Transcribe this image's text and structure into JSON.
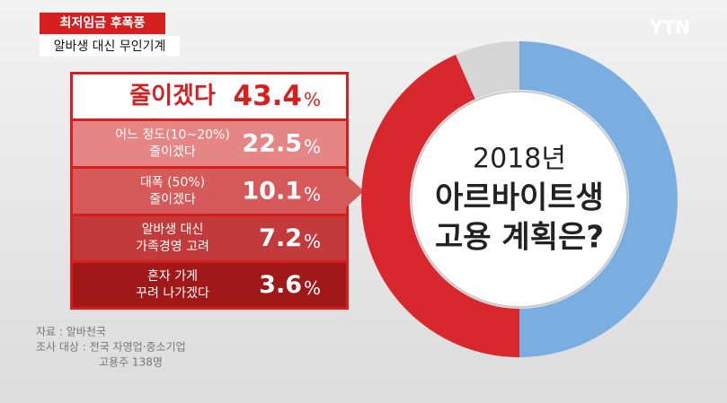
{
  "header": {
    "tag": "최저임금 후폭풍",
    "subtitle": "알바생 대신 무인기계",
    "logo": "YTN"
  },
  "breakdown": [
    {
      "label": [
        "줄이겠다"
      ],
      "value": 43.4,
      "unit": "%"
    },
    {
      "label": [
        "어느 정도(10~20%)",
        "줄이겠다"
      ],
      "value": 22.5,
      "unit": "%"
    },
    {
      "label": [
        "대폭 (50%)",
        "줄이겠다"
      ],
      "value": 10.1,
      "unit": "%"
    },
    {
      "label": [
        "알바생 대신",
        "가족경영 고려"
      ],
      "value": 7.2,
      "unit": "%"
    },
    {
      "label": [
        "혼자 가게",
        "꾸려 나가겠다"
      ],
      "value": 3.6,
      "unit": "%"
    }
  ],
  "chart_data": {
    "type": "pie",
    "donut": true,
    "values": [
      50,
      43.4,
      6.6
    ],
    "colors": [
      "#7aaee0",
      "#d9272e",
      "#d5d5d5"
    ],
    "center_text": [
      "2018년",
      "아르바이트생",
      "고용 계획은?"
    ]
  },
  "source": [
    "자료 : 알바천국",
    "조사 대상 : 전국 자영업·중소기업",
    "고용주 138명"
  ]
}
